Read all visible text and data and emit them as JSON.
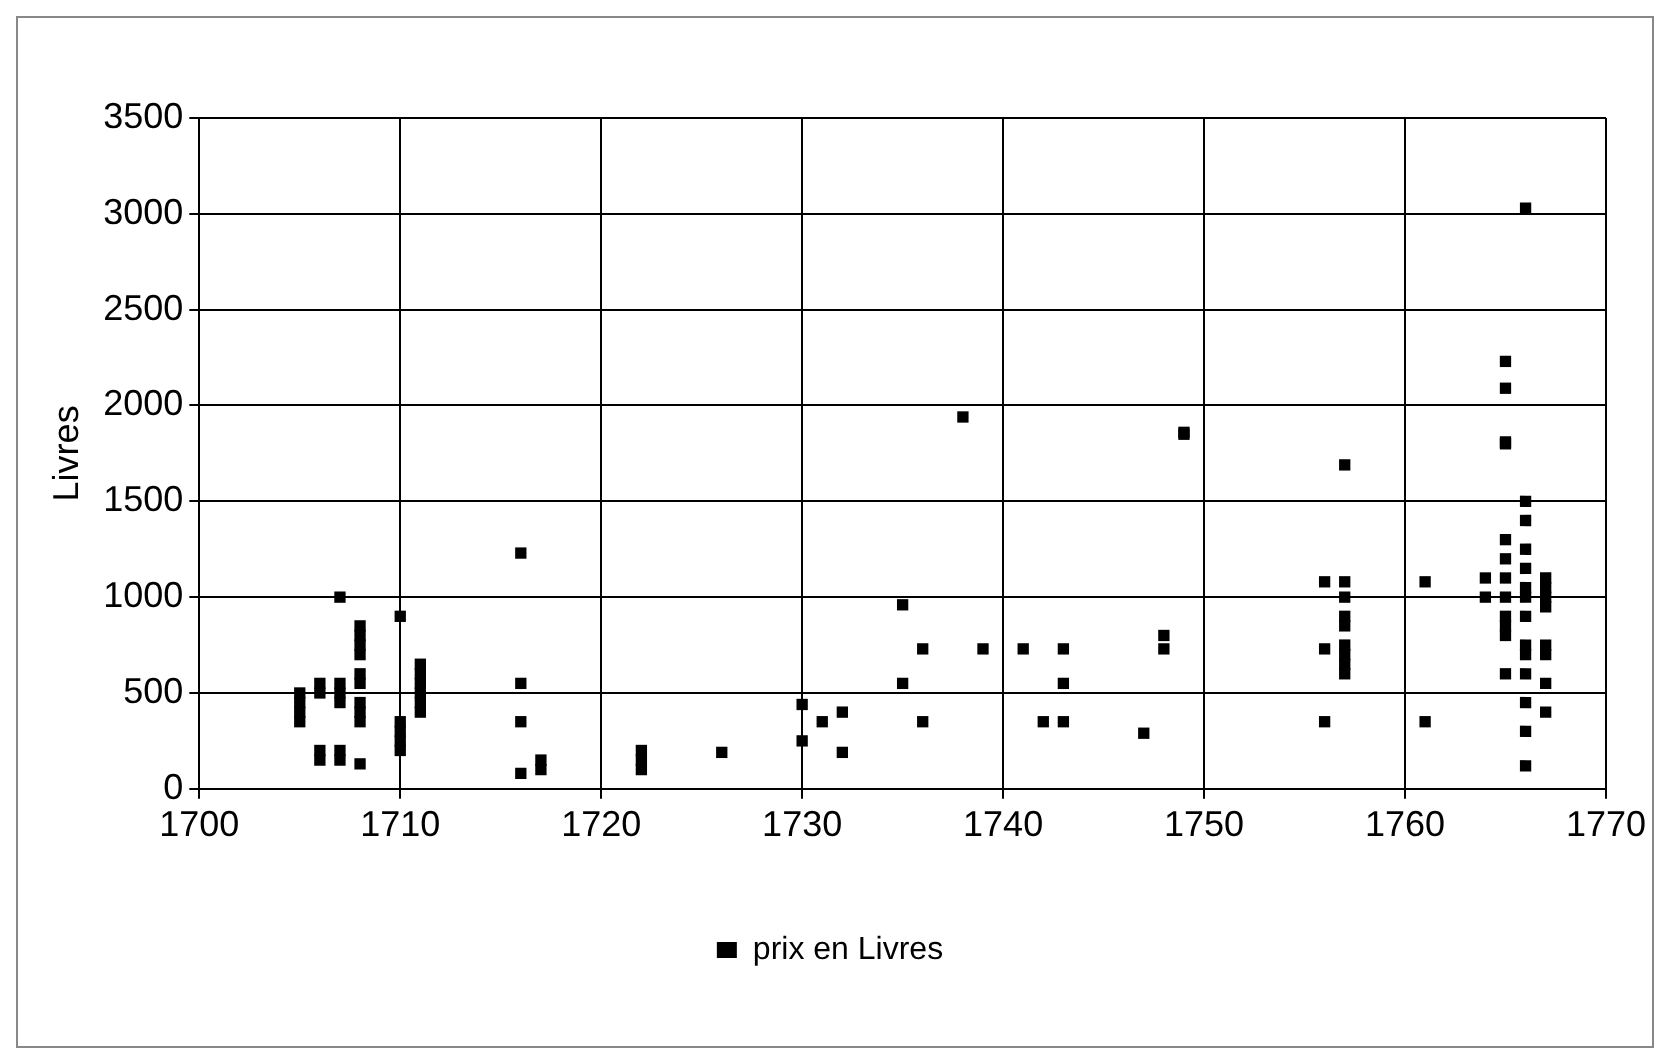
{
  "chart_data": {
    "type": "scatter",
    "ylabel": "Livres",
    "xlim": [
      1700,
      1770
    ],
    "xticks": [
      1700,
      1710,
      1720,
      1730,
      1740,
      1750,
      1760,
      1770
    ],
    "ylim": [
      0,
      3500
    ],
    "yticks": [
      0,
      500,
      1000,
      1500,
      2000,
      2500,
      3000,
      3500
    ],
    "grid": true,
    "legend": "bottom",
    "marker": "square",
    "series": [
      {
        "name": "prix en Livres",
        "color": "#000000",
        "x": [
          1705,
          1705,
          1705,
          1705,
          1706,
          1706,
          1706,
          1706,
          1707,
          1707,
          1707,
          1707,
          1707,
          1707,
          1708,
          1708,
          1708,
          1708,
          1708,
          1708,
          1708,
          1708,
          1708,
          1708,
          1710,
          1710,
          1710,
          1710,
          1710,
          1711,
          1711,
          1711,
          1711,
          1711,
          1711,
          1716,
          1716,
          1716,
          1716,
          1717,
          1717,
          1722,
          1722,
          1722,
          1726,
          1730,
          1730,
          1731,
          1732,
          1732,
          1735,
          1735,
          1736,
          1736,
          1738,
          1739,
          1741,
          1742,
          1743,
          1743,
          1743,
          1747,
          1748,
          1748,
          1749,
          1749,
          1756,
          1756,
          1756,
          1757,
          1757,
          1757,
          1757,
          1757,
          1757,
          1757,
          1757,
          1757,
          1761,
          1761,
          1764,
          1764,
          1765,
          1765,
          1765,
          1765,
          1765,
          1765,
          1765,
          1765,
          1765,
          1765,
          1765,
          1765,
          1766,
          1766,
          1766,
          1766,
          1766,
          1766,
          1766,
          1766,
          1766,
          1766,
          1766,
          1766,
          1766,
          1766,
          1767,
          1767,
          1767,
          1767,
          1767,
          1767,
          1767,
          1767
        ],
        "values": [
          500,
          450,
          400,
          350,
          550,
          500,
          200,
          150,
          1000,
          550,
          500,
          450,
          200,
          150,
          850,
          800,
          750,
          700,
          600,
          550,
          450,
          400,
          350,
          130,
          900,
          350,
          300,
          250,
          200,
          650,
          600,
          550,
          500,
          450,
          400,
          1230,
          550,
          350,
          80,
          150,
          100,
          200,
          150,
          100,
          190,
          440,
          250,
          350,
          400,
          190,
          960,
          550,
          730,
          350,
          1940,
          730,
          730,
          350,
          730,
          550,
          350,
          290,
          800,
          730,
          1860,
          1850,
          1080,
          730,
          350,
          1690,
          1080,
          1000,
          900,
          850,
          750,
          700,
          650,
          600,
          1080,
          350,
          1100,
          1000,
          2230,
          2090,
          1810,
          1800,
          1300,
          1200,
          1100,
          1000,
          900,
          850,
          800,
          600,
          3030,
          1500,
          1400,
          1250,
          1150,
          1050,
          1000,
          900,
          750,
          700,
          600,
          450,
          300,
          120,
          1100,
          1050,
          1000,
          950,
          750,
          700,
          550,
          400
        ]
      }
    ]
  }
}
